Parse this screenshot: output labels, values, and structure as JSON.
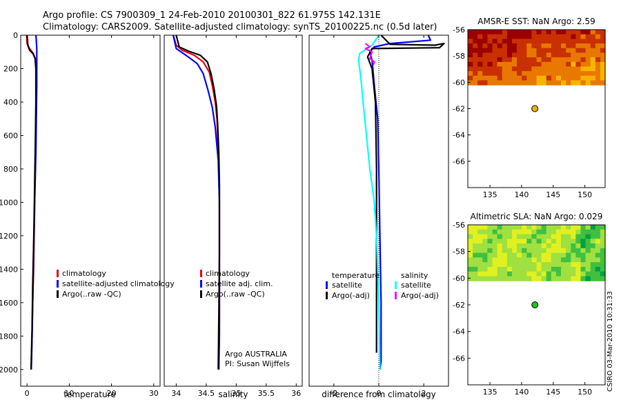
{
  "header": {
    "title_line1": "Argo profile: CS 7900309_1 24-Feb-2010 20100301_822 61.975S 142.131E",
    "title_line2": "Climatology: CARS2009. Satellite-adjusted climatology: synTS_20100225.nc (0.5d later)"
  },
  "footer": {
    "stamp": "CSIRO 03-Mar-2010 10:31:33"
  },
  "chart_data": [
    {
      "id": "temperature",
      "type": "line",
      "xlabel": "temperature",
      "xlim": [
        -1.5,
        31.5
      ],
      "ylim": [
        0,
        2100
      ],
      "y_reversed": true,
      "xticks": [
        0,
        10,
        20,
        30
      ],
      "xtick_labels": [
        "0",
        "10",
        "20",
        "30"
      ],
      "yticks": [
        0,
        200,
        400,
        600,
        800,
        1000,
        1200,
        1400,
        1600,
        1800,
        2000
      ],
      "ytick_labels": [
        "0",
        "200",
        "400",
        "600",
        "800",
        "1000",
        "1200",
        "1400",
        "1600",
        "1800",
        "2000"
      ],
      "legend": [
        "climatology",
        "satellite-adjusted climatology",
        "Argo(..raw -QC)"
      ],
      "legend_position": "lower-right",
      "series": [
        {
          "name": "climatology",
          "color": "#e8000b",
          "x": [
            -0.1,
            0.0,
            0.6,
            1.5,
            2.1,
            2.15,
            2.1,
            1.95,
            1.75,
            1.55,
            1.35,
            1.2,
            1.1,
            1.0
          ],
          "y": [
            0,
            50,
            80,
            110,
            150,
            300,
            500,
            800,
            1100,
            1400,
            1600,
            1800,
            1900,
            2000
          ]
        },
        {
          "name": "satellite-adjusted climatology",
          "color": "#0000ff",
          "x": [
            2.1,
            2.2,
            2.3,
            2.3,
            2.3,
            2.2,
            2.1,
            1.8,
            1.55,
            1.35,
            1.2,
            1.1,
            1.0
          ],
          "y": [
            0,
            30,
            80,
            150,
            300,
            500,
            700,
            1000,
            1300,
            1600,
            1800,
            1900,
            2000
          ]
        },
        {
          "name": "Argo(..raw -QC)",
          "color": "#000000",
          "x": [
            0.0,
            0.2,
            0.6,
            1.4,
            1.9,
            2.1,
            2.1,
            2.0,
            1.8,
            1.6,
            1.35,
            1.2,
            1.05,
            0.95
          ],
          "y": [
            0,
            60,
            90,
            110,
            140,
            200,
            400,
            600,
            900,
            1200,
            1500,
            1750,
            1900,
            2000
          ]
        }
      ],
      "annotations": []
    },
    {
      "id": "salinity",
      "type": "line",
      "xlabel": "salinity",
      "xlim": [
        33.8,
        36.1
      ],
      "ylim": [
        0,
        2100
      ],
      "y_reversed": true,
      "xticks": [
        34,
        34.5,
        35,
        35.5,
        36
      ],
      "xtick_labels": [
        "34",
        "34.5",
        "35",
        "35.5",
        "36"
      ],
      "legend": [
        "climatology",
        "satellite adj. clim.",
        "Argo(..raw -QC)"
      ],
      "legend_position": "lower-right",
      "series": [
        {
          "name": "climatology",
          "color": "#e8000b",
          "x": [
            33.95,
            34.0,
            34.1,
            34.3,
            34.45,
            34.55,
            34.6,
            34.65,
            34.68,
            34.7,
            34.72,
            34.72,
            34.72,
            34.71
          ],
          "y": [
            0,
            60,
            90,
            120,
            160,
            220,
            300,
            400,
            500,
            700,
            900,
            1300,
            1700,
            2000
          ]
        },
        {
          "name": "satellite adj. clim.",
          "color": "#0000ff",
          "x": [
            33.95,
            34.0,
            34.08,
            34.2,
            34.35,
            34.45,
            34.53,
            34.6,
            34.65,
            34.7,
            34.72,
            34.72,
            34.72,
            34.71
          ],
          "y": [
            0,
            80,
            100,
            130,
            170,
            230,
            330,
            430,
            550,
            750,
            1000,
            1400,
            1800,
            2000
          ]
        },
        {
          "name": "Argo(..raw -QC)",
          "color": "#000000",
          "x": [
            34.0,
            34.05,
            34.2,
            34.4,
            34.52,
            34.58,
            34.63,
            34.67,
            34.69,
            34.71,
            34.72,
            34.72,
            34.71,
            34.7
          ],
          "y": [
            0,
            70,
            95,
            120,
            160,
            230,
            320,
            420,
            530,
            700,
            900,
            1300,
            1700,
            2000
          ]
        }
      ],
      "annotations": [
        "Argo AUSTRALIA",
        "PI: Susan Wijffels"
      ]
    },
    {
      "id": "difference",
      "type": "line",
      "xlabel": "difference from climatology",
      "xlim": [
        -3.1,
        3.1
      ],
      "ylim": [
        0,
        2100
      ],
      "y_reversed": true,
      "xticks": [
        -2,
        0,
        2
      ],
      "xtick_labels": [
        "-2",
        "0",
        "2"
      ],
      "legend_groups": [
        {
          "title": "temperature",
          "items": [
            {
              "label": "satellite",
              "color": "#0000ff"
            },
            {
              "label": "Argo(-adj)",
              "color": "#000000"
            }
          ]
        },
        {
          "title": "salinity",
          "items": [
            {
              "label": "satellite",
              "color": "#00ffff"
            },
            {
              "label": "Argo(-adj)",
              "color": "#ff00ff"
            }
          ]
        }
      ],
      "legend_position": "lower",
      "series": [
        {
          "name": "temperature satellite",
          "color": "#0000ff",
          "x": [
            2.2,
            2.3,
            0.5,
            -0.2,
            -0.4,
            -0.3,
            -0.2,
            -0.05,
            0.0,
            0.05,
            0.1,
            0.1,
            0.1,
            0.05
          ],
          "y": [
            0,
            30,
            50,
            70,
            100,
            150,
            300,
            500,
            800,
            1200,
            1600,
            1900,
            1950,
            2000
          ]
        },
        {
          "name": "temperature Argo(-adj)",
          "color": "#000000",
          "x": [
            0.1,
            0.5,
            2.5,
            2.9,
            2.7,
            -0.3,
            -0.5,
            -0.3,
            -0.15,
            -0.1,
            -0.1,
            -0.1,
            -0.1
          ],
          "y": [
            0,
            55,
            60,
            50,
            75,
            80,
            130,
            200,
            400,
            800,
            1300,
            1800,
            1900
          ]
        },
        {
          "name": "salinity satellite",
          "color": "#00ffff",
          "x": [
            0.0,
            -0.3,
            -0.85,
            -0.9,
            -0.8,
            -0.7,
            -0.55,
            -0.4,
            -0.2,
            -0.1,
            0.0,
            0.05
          ],
          "y": [
            0,
            60,
            110,
            150,
            250,
            400,
            600,
            800,
            1000,
            1200,
            1600,
            2000
          ]
        },
        {
          "name": "salinity Argo(-adj)",
          "color": "#ff00ff",
          "x": [
            -0.6,
            -0.4,
            -0.6,
            -0.3,
            -0.4,
            -0.2,
            -0.25
          ],
          "y": [
            50,
            70,
            80,
            100,
            140,
            160,
            180
          ]
        }
      ],
      "annotations": []
    },
    {
      "id": "sst_map",
      "type": "heatmap",
      "title": "AMSR-E SST: NaN Argo: 2.59",
      "xlim": [
        131.5,
        153.2
      ],
      "ylim": [
        -68,
        -56
      ],
      "xticks": [
        135,
        140,
        145,
        150
      ],
      "xtick_labels": [
        "135",
        "140",
        "145",
        "150"
      ],
      "yticks": [
        -56,
        -58,
        -60,
        -62,
        -64,
        -66
      ],
      "ytick_labels": [
        "-56",
        "-58",
        "-60",
        "-62",
        "-64",
        "-66"
      ],
      "data_lat_range": [
        -60.2,
        -56
      ],
      "colormap": [
        "#9b0000",
        "#c83000",
        "#e87800",
        "#f8b400"
      ],
      "marker": {
        "lon": 142.1,
        "lat": -62.0,
        "color": "#f0b000"
      }
    },
    {
      "id": "sla_map",
      "type": "heatmap",
      "title": "Altimetric SLA: NaN Argo: 0.029",
      "xlim": [
        131.5,
        153.2
      ],
      "ylim": [
        -68,
        -56
      ],
      "xticks": [
        135,
        140,
        145,
        150
      ],
      "xtick_labels": [
        "135",
        "140",
        "145",
        "150"
      ],
      "yticks": [
        -56,
        -58,
        -60,
        -62,
        -64,
        -66
      ],
      "ytick_labels": [
        "-56",
        "-58",
        "-60",
        "-62",
        "-64",
        "-66"
      ],
      "data_lat_range": [
        -60.2,
        -56
      ],
      "colormap": [
        "#00a040",
        "#40c040",
        "#a0e040",
        "#e0f020"
      ],
      "marker": {
        "lon": 142.1,
        "lat": -62.0,
        "color": "#20c020"
      }
    }
  ]
}
